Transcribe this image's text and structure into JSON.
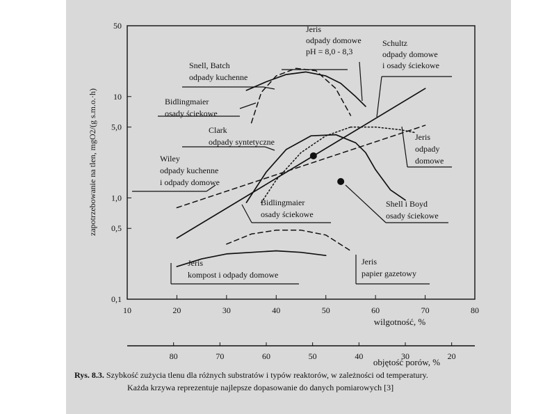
{
  "chart_data": {
    "type": "line",
    "title": "",
    "ylabel": "zapotrzebowanie na tlen, mgO2/(g s.m.o.·h)",
    "xlabel": "wilgotność, %",
    "x2label": "objętość porów, %",
    "yscale": "log",
    "ylim": [
      0.1,
      50
    ],
    "xlim": [
      10,
      80
    ],
    "x2lim": [
      90,
      15
    ],
    "yticks": [
      "50",
      "10",
      "5,0",
      "1,0",
      "0,5",
      "0,1"
    ],
    "yticks_values": [
      50,
      10,
      5,
      1,
      0.5,
      0.1
    ],
    "xticks": [
      "10",
      "20",
      "30",
      "40",
      "50",
      "60",
      "70",
      "80"
    ],
    "x2ticks": [
      "80",
      "70",
      "60",
      "50",
      "40",
      "30",
      "20"
    ],
    "series": [
      {
        "name": "Jeris, odpady domowe, pH = 8,0 - 8,3",
        "style": "solid",
        "x": [
          34,
          38,
          42,
          46,
          50,
          53,
          56,
          58
        ],
        "y": [
          11.5,
          14.0,
          16.5,
          17.5,
          16.0,
          13.5,
          10.0,
          8.0
        ]
      },
      {
        "name": "Snell, Batch, odpady kuchenne",
        "style": "dashed",
        "x": [
          35,
          37,
          40,
          44,
          48,
          52,
          55
        ],
        "y": [
          5.5,
          11.0,
          16.0,
          19.0,
          18.0,
          12.0,
          6.5
        ]
      },
      {
        "name": "Schultz, odpady domowe i osady ściekowe",
        "style": "solid",
        "x": [
          20,
          70
        ],
        "y": [
          0.4,
          12.0
        ]
      },
      {
        "name": "Clark, odpady syntetyczne",
        "style": "dotted",
        "x": [
          37,
          40,
          45,
          50,
          55
        ],
        "y": [
          0.9,
          1.5,
          2.8,
          4.1,
          5.0
        ]
      },
      {
        "name": "Jeris, odpady domowe",
        "style": "dotted",
        "x": [
          55,
          60,
          65,
          68
        ],
        "y": [
          5.0,
          5.0,
          4.7,
          4.4
        ]
      },
      {
        "name": "Wiley, odpady kuchenne i odpady domowe",
        "style": "dashed",
        "x": [
          20,
          70
        ],
        "y": [
          0.8,
          5.2
        ]
      },
      {
        "name": "Bidlingmaier, osady ściekowe",
        "style": "solid",
        "x": [
          34,
          38,
          42,
          47,
          52,
          56,
          58,
          60,
          63,
          66
        ],
        "y": [
          0.9,
          1.8,
          3.0,
          4.1,
          4.2,
          3.5,
          2.8,
          1.9,
          1.2,
          0.95
        ]
      },
      {
        "name": "Jeris, kompost i odpady domowe",
        "style": "solid",
        "x": [
          20,
          25,
          30,
          35,
          40,
          45,
          50
        ],
        "y": [
          0.21,
          0.25,
          0.28,
          0.29,
          0.3,
          0.29,
          0.27
        ]
      },
      {
        "name": "Jeris, papier gazetowy",
        "style": "dashed",
        "x": [
          30,
          35,
          40,
          45,
          50,
          55
        ],
        "y": [
          0.35,
          0.44,
          0.48,
          0.48,
          0.43,
          0.3
        ]
      },
      {
        "name": "Shell i Boyd, osady ściekowe",
        "style": "points",
        "x": [
          47.5,
          53.0
        ],
        "y": [
          2.6,
          1.45
        ]
      }
    ],
    "annotations": [
      {
        "id": "jeris-top",
        "lines": [
          "Jeris",
          "odpady domowe",
          "pH = 8,0 - 8,3"
        ]
      },
      {
        "id": "snell",
        "lines": [
          "Snell, Batch",
          "odpady kuchenne"
        ]
      },
      {
        "id": "schultz",
        "lines": [
          "Schultz",
          "odpady domowe",
          "i osady ściekowe"
        ]
      },
      {
        "id": "bidlingmaier-top",
        "lines": [
          "Bidlingmaier",
          "osady ściekowe"
        ]
      },
      {
        "id": "clark",
        "lines": [
          "Clark",
          "odpady syntetyczne"
        ]
      },
      {
        "id": "jeris-right",
        "lines": [
          "Jeris",
          "odpady",
          "domowe"
        ]
      },
      {
        "id": "wiley",
        "lines": [
          "Wiley",
          "odpady kuchenne",
          "i odpady domowe"
        ]
      },
      {
        "id": "bidlingmaier-bottom",
        "lines": [
          "Bidlingmaier",
          "osady ściekowe"
        ]
      },
      {
        "id": "shell-boyd",
        "lines": [
          "Shell i Boyd",
          "osady ściekowe"
        ]
      },
      {
        "id": "jeris-compost",
        "lines": [
          "Jeris",
          "kompost i odpady domowe"
        ]
      },
      {
        "id": "jeris-paper",
        "lines": [
          "Jeris",
          "papier gazetowy"
        ]
      }
    ]
  },
  "caption": {
    "label": "Rys. 8.3.",
    "line1": "Szybkość zużycia tlenu dla różnych substratów i typów reaktorów, w zależności od temperatury.",
    "line2": "Każda krzywa reprezentuje najlepsze dopasowanie do danych pomiarowych [3]"
  }
}
